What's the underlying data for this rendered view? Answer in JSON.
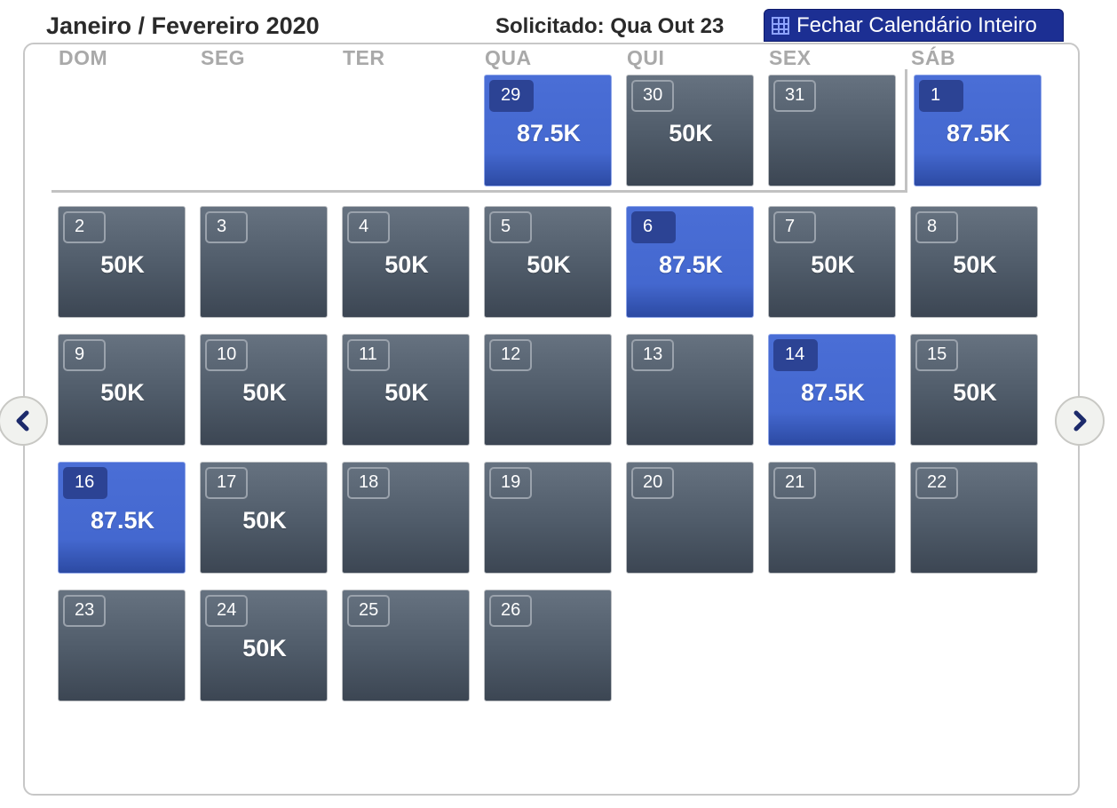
{
  "header": {
    "title": "Janeiro / Fevereiro 2020",
    "requested": "Solicitado: Qua Out 23",
    "close_button": "Fechar Calendário Inteiro",
    "close_icon": "grid-icon"
  },
  "weekdays": [
    "DOM",
    "SEG",
    "TER",
    "QUA",
    "QUI",
    "SEX",
    "SÁB"
  ],
  "nav": {
    "prev_icon": "chevron-left-icon",
    "next_icon": "chevron-right-icon"
  },
  "colors": {
    "default_day": "#4f5b69",
    "highlight_day": "#4468cf",
    "header_button": "#1c2f93"
  },
  "days": [
    {
      "day": "29",
      "price": "87.5K",
      "highlight": true
    },
    {
      "day": "30",
      "price": "50K",
      "highlight": false
    },
    {
      "day": "31",
      "price": "",
      "highlight": false
    },
    {
      "day": "1",
      "price": "87.5K",
      "highlight": true
    },
    {
      "day": "2",
      "price": "50K",
      "highlight": false
    },
    {
      "day": "3",
      "price": "",
      "highlight": false
    },
    {
      "day": "4",
      "price": "50K",
      "highlight": false
    },
    {
      "day": "5",
      "price": "50K",
      "highlight": false
    },
    {
      "day": "6",
      "price": "87.5K",
      "highlight": true
    },
    {
      "day": "7",
      "price": "50K",
      "highlight": false
    },
    {
      "day": "8",
      "price": "50K",
      "highlight": false
    },
    {
      "day": "9",
      "price": "50K",
      "highlight": false
    },
    {
      "day": "10",
      "price": "50K",
      "highlight": false
    },
    {
      "day": "11",
      "price": "50K",
      "highlight": false
    },
    {
      "day": "12",
      "price": "",
      "highlight": false
    },
    {
      "day": "13",
      "price": "",
      "highlight": false
    },
    {
      "day": "14",
      "price": "87.5K",
      "highlight": true
    },
    {
      "day": "15",
      "price": "50K",
      "highlight": false
    },
    {
      "day": "16",
      "price": "87.5K",
      "highlight": true
    },
    {
      "day": "17",
      "price": "50K",
      "highlight": false
    },
    {
      "day": "18",
      "price": "",
      "highlight": false
    },
    {
      "day": "19",
      "price": "",
      "highlight": false
    },
    {
      "day": "20",
      "price": "",
      "highlight": false
    },
    {
      "day": "21",
      "price": "",
      "highlight": false
    },
    {
      "day": "22",
      "price": "",
      "highlight": false
    },
    {
      "day": "23",
      "price": "",
      "highlight": false
    },
    {
      "day": "24",
      "price": "50K",
      "highlight": false
    },
    {
      "day": "25",
      "price": "",
      "highlight": false
    },
    {
      "day": "26",
      "price": "",
      "highlight": false
    }
  ]
}
